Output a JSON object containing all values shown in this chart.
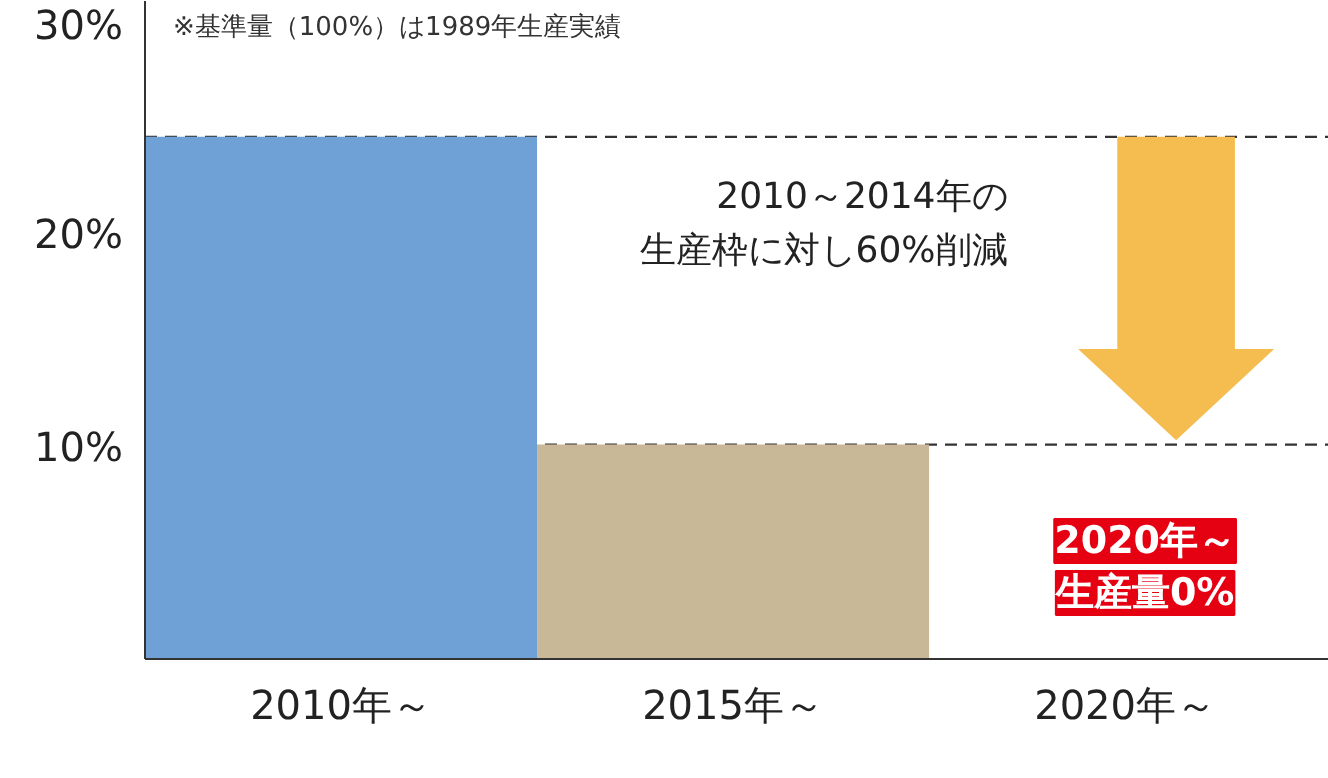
{
  "chart_data": {
    "type": "bar",
    "categories": [
      "2010年～",
      "2015年～",
      "2020年～"
    ],
    "values": [
      24.6,
      10.1,
      0
    ],
    "colors": [
      "#6fa0d6",
      "#c9b898",
      "#c9b898"
    ],
    "ylim": [
      0,
      31
    ],
    "yticks": [
      {
        "value": 10,
        "label": "10%"
      },
      {
        "value": 20,
        "label": "20%"
      },
      {
        "value": 30,
        "label": "30%"
      }
    ],
    "grid": false,
    "ref_lines": [
      {
        "axis": "y",
        "value": 24.6,
        "color": "#333333",
        "line_style": "dashed"
      },
      {
        "axis": "y",
        "value": 10.1,
        "color": "#333333",
        "line_style": "dashed"
      }
    ],
    "annotations": [
      "※基準量（100%）は1989年生産実績",
      "2010～2014年の生産枠に対し60%削減",
      {
        "text": "2020年～",
        "x": "2020年～",
        "y": 0
      },
      {
        "text": "生産量0%",
        "x": "2020年～",
        "y": 0
      }
    ]
  }
}
